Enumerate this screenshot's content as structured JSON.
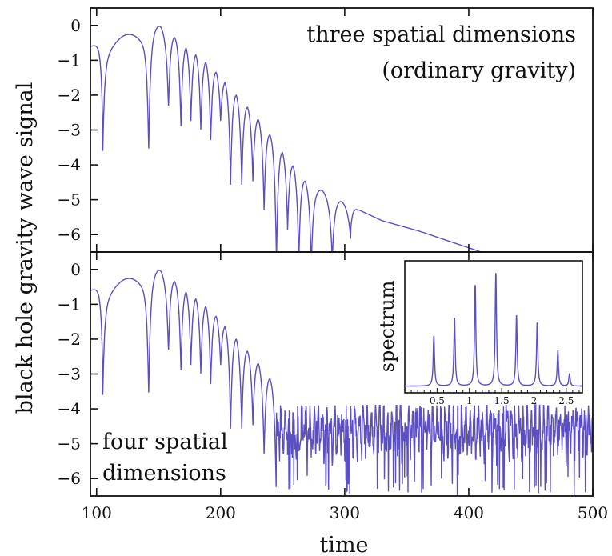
{
  "chart_data": [
    {
      "type": "line",
      "xlabel": "time",
      "ylabel": "black hole gravity wave signal",
      "xlim": [
        95,
        500
      ],
      "ylim": [
        -6.5,
        0.5
      ],
      "xticks": [
        100,
        200,
        300,
        400,
        500
      ],
      "yticks": [
        0,
        -1,
        -2,
        -3,
        -4,
        -5,
        -6
      ],
      "annotation_lines": [
        "three spatial dimensions",
        "(ordinary gravity)"
      ],
      "series_color": "#5b4fc4",
      "dips": [
        {
          "t": 105,
          "y": -3.0
        },
        {
          "t": 142,
          "y": -3.05
        },
        {
          "t": 158,
          "y": -2.0
        },
        {
          "t": 168,
          "y": -2.65
        },
        {
          "t": 176,
          "y": -2.5
        },
        {
          "t": 184,
          "y": -2.75
        },
        {
          "t": 192,
          "y": -3.05
        },
        {
          "t": 200,
          "y": -2.5
        },
        {
          "t": 208,
          "y": -4.3
        },
        {
          "t": 217,
          "y": -4.3
        },
        {
          "t": 226,
          "y": -4.2
        },
        {
          "t": 235,
          "y": -5.0
        },
        {
          "t": 245,
          "y": -6.5
        },
        {
          "t": 254,
          "y": -5.6
        },
        {
          "t": 263,
          "y": -6.5
        },
        {
          "t": 273,
          "y": -6.5
        },
        {
          "t": 290,
          "y": -6.3
        },
        {
          "t": 305,
          "y": -5.8
        }
      ],
      "envelope": [
        {
          "t": 95,
          "y": -0.6
        },
        {
          "t": 130,
          "y": -0.2
        },
        {
          "t": 152,
          "y": 0.0
        },
        {
          "t": 190,
          "y": -1.0
        },
        {
          "t": 230,
          "y": -2.6
        },
        {
          "t": 270,
          "y": -4.5
        },
        {
          "t": 300,
          "y": -5.1
        },
        {
          "t": 330,
          "y": -5.6
        },
        {
          "t": 360,
          "y": -5.9
        },
        {
          "t": 410,
          "y": -6.5
        }
      ]
    },
    {
      "type": "line",
      "xlabel": "time",
      "ylabel": "black hole gravity wave signal",
      "xlim": [
        95,
        500
      ],
      "ylim": [
        -6.5,
        0.5
      ],
      "xticks": [
        100,
        200,
        300,
        400,
        500
      ],
      "yticks": [
        0,
        -1,
        -2,
        -3,
        -4,
        -5,
        -6
      ],
      "annotation_lines": [
        "four spatial",
        "dimensions"
      ],
      "series_color": "#5b4fc4",
      "noise_floor": {
        "t_start": 245,
        "mean": -4.6,
        "low": -6.5,
        "high": -3.9
      }
    },
    {
      "type": "line",
      "ylabel": "spectrum",
      "xlim": [
        0,
        2.75
      ],
      "xticks": [
        0.5,
        1,
        1.5,
        2,
        2.5
      ],
      "xtick_labels": [
        "0.5",
        "1",
        "1.5",
        "2",
        "2.5"
      ],
      "peaks": [
        {
          "x": 0.45,
          "height": 0.41
        },
        {
          "x": 0.77,
          "height": 0.56
        },
        {
          "x": 1.09,
          "height": 0.83
        },
        {
          "x": 1.41,
          "height": 0.93
        },
        {
          "x": 1.73,
          "height": 0.58
        },
        {
          "x": 2.05,
          "height": 0.52
        },
        {
          "x": 2.37,
          "height": 0.29
        },
        {
          "x": 2.55,
          "height": 0.1
        }
      ]
    }
  ]
}
